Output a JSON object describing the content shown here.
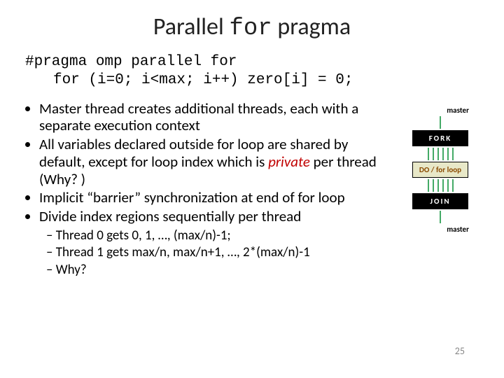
{
  "title_pre": "Parallel ",
  "title_mono": "for",
  "title_post": " pragma",
  "code": {
    "line1": "#pragma omp parallel for",
    "line2": "for (i=0; i<max; i++) zero[i] = 0;"
  },
  "bullets": {
    "b1": "Master thread creates additional threads, each with a separate execution context",
    "b2a": "All variables declared outside for loop are shared by default, except for loop index which is ",
    "b2_private": "private",
    "b2b": " per thread (Why? )",
    "b3": "Implicit “barrier” synchronization at end of for loop",
    "b4": "Divide index regions sequentially per thread",
    "s1": "Thread 0 gets 0, 1, …, (max/n)-1;",
    "s2": "Thread 1 gets max/n, max/n+1, …, 2*(max/n)-1",
    "s3": "Why?"
  },
  "diagram": {
    "master_top": "master",
    "fork": "FORK",
    "loop": "DO / for loop",
    "join": "JOIN",
    "master_bottom": "master",
    "colors": {
      "dark_bg": "#000000",
      "dark_fg": "#ffffff",
      "light_bg": "#e8e8c8",
      "light_fg": "#8a4a00",
      "line": "#44aa66"
    }
  },
  "page_number": "25"
}
